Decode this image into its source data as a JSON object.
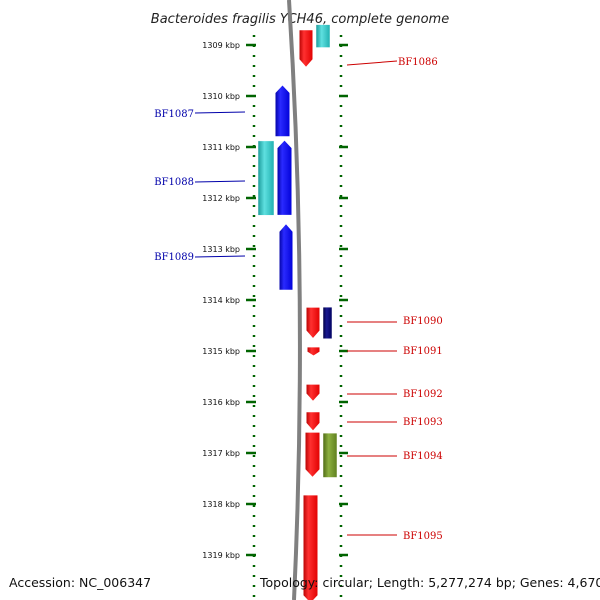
{
  "title": "Bacteroides fragilis YCH46, complete genome",
  "footer": {
    "accession": "Accession: NC_006347",
    "topology": "Topology: circular; Length: 5,277,274 bp; Genes: 4,670"
  },
  "colors": {
    "forward_strand": "#ff0000",
    "reverse_strand": "#0000ff",
    "forward_label": "#cc0000",
    "reverse_label": "#0000aa",
    "ruler": "#006400",
    "backbone": "#808080",
    "teal_feature": "#2bbcbc",
    "navy_feature": "#000066",
    "olive_feature": "#6b8e23"
  },
  "ruler_ticks": [
    "1309 kbp",
    "1310 kbp",
    "1311 kbp",
    "1312 kbp",
    "1313 kbp",
    "1314 kbp",
    "1315 kbp",
    "1316 kbp",
    "1317 kbp",
    "1318 kbp",
    "1319 kbp"
  ],
  "genes": [
    {
      "name": "BF1086",
      "strand": "+",
      "start_kbp": 1308.7,
      "end_kbp": 1309.44
    },
    {
      "name": "BF1087",
      "strand": "-",
      "start_kbp": 1309.78,
      "end_kbp": 1310.8
    },
    {
      "name": "BF1088",
      "strand": "-",
      "start_kbp": 1310.86,
      "end_kbp": 1312.34
    },
    {
      "name": "BF1089",
      "strand": "-",
      "start_kbp": 1312.5,
      "end_kbp": 1313.81
    },
    {
      "name": "BF1090",
      "strand": "+",
      "start_kbp": 1314.14,
      "end_kbp": 1314.76
    },
    {
      "name": "BF1091",
      "strand": "+",
      "start_kbp": 1314.92,
      "end_kbp": 1315.1
    },
    {
      "name": "BF1092",
      "strand": "+",
      "start_kbp": 1315.65,
      "end_kbp": 1315.99
    },
    {
      "name": "BF1093",
      "strand": "+",
      "start_kbp": 1316.19,
      "end_kbp": 1316.57
    },
    {
      "name": "BF1094",
      "strand": "+",
      "start_kbp": 1316.59,
      "end_kbp": 1317.48
    },
    {
      "name": "BF1095",
      "strand": "+",
      "start_kbp": 1317.82,
      "end_kbp": 1319.95
    }
  ],
  "features": [
    {
      "kind": "teal",
      "start_kbp": 1308.6,
      "end_kbp": 1309.05
    },
    {
      "kind": "teal",
      "start_kbp": 1310.88,
      "end_kbp": 1312.34
    },
    {
      "kind": "navy",
      "start_kbp": 1314.14,
      "end_kbp": 1314.76
    },
    {
      "kind": "olive",
      "start_kbp": 1316.61,
      "end_kbp": 1317.48
    }
  ]
}
